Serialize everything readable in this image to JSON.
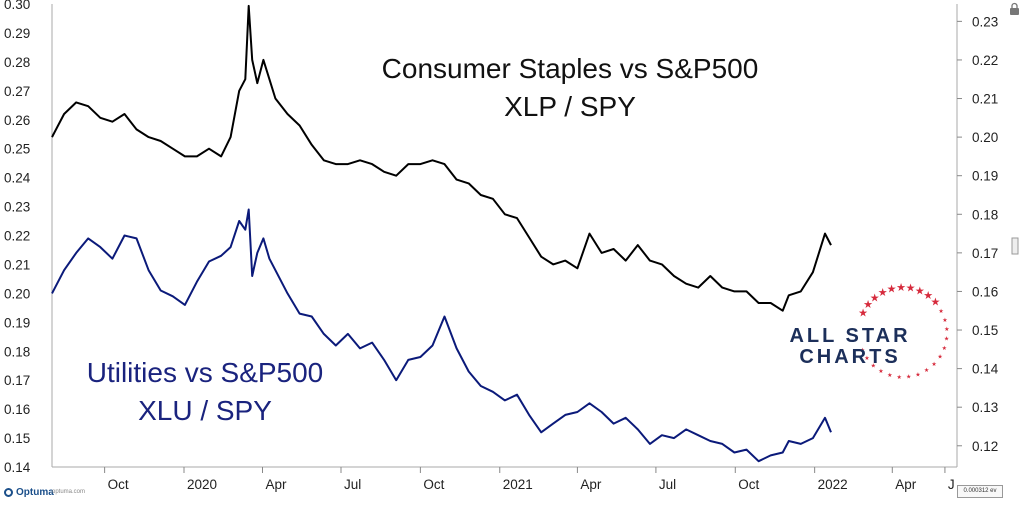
{
  "chart_data": {
    "type": "line",
    "titles": {
      "top_line1": "Consumer Staples vs S&P500",
      "top_line2": "XLP / SPY",
      "bottom_line1": "Utilities vs S&P500",
      "bottom_line2": "XLU / SPY"
    },
    "left_axis": {
      "ylim": [
        0.14,
        0.3
      ],
      "ticks": [
        "0.30",
        "0.29",
        "0.28",
        "0.27",
        "0.26",
        "0.25",
        "0.24",
        "0.23",
        "0.22",
        "0.21",
        "0.20",
        "0.19",
        "0.18",
        "0.17",
        "0.16",
        "0.15",
        "0.14"
      ]
    },
    "right_axis": {
      "ylim": [
        0.1145,
        0.2345
      ],
      "ticks": [
        "0.23",
        "0.22",
        "0.21",
        "0.20",
        "0.19",
        "0.18",
        "0.17",
        "0.16",
        "0.15",
        "0.14",
        "0.13",
        "0.12"
      ]
    },
    "x_axis": {
      "range": [
        "2019-08-01",
        "2022-06-15"
      ],
      "ticks": [
        {
          "label": "Oct",
          "date": "2019-10-01"
        },
        {
          "label": "2020",
          "date": "2020-01-01"
        },
        {
          "label": "Apr",
          "date": "2020-04-01"
        },
        {
          "label": "Jul",
          "date": "2020-07-01"
        },
        {
          "label": "Oct",
          "date": "2020-10-01"
        },
        {
          "label": "2021",
          "date": "2021-01-01"
        },
        {
          "label": "Apr",
          "date": "2021-04-01"
        },
        {
          "label": "Jul",
          "date": "2021-07-01"
        },
        {
          "label": "Oct",
          "date": "2021-10-01"
        },
        {
          "label": "2022",
          "date": "2022-01-01"
        },
        {
          "label": "Apr",
          "date": "2022-04-01"
        },
        {
          "label": "J",
          "date": "2022-06-01"
        }
      ]
    },
    "series": [
      {
        "axis": "right",
        "color": "#000000",
        "points": [
          [
            "2019-08-01",
            0.2
          ],
          [
            "2019-08-15",
            0.206
          ],
          [
            "2019-08-29",
            0.209
          ],
          [
            "2019-09-12",
            0.208
          ],
          [
            "2019-09-26",
            0.205
          ],
          [
            "2019-10-10",
            0.204
          ],
          [
            "2019-10-24",
            0.206
          ],
          [
            "2019-11-07",
            0.202
          ],
          [
            "2019-11-21",
            0.2
          ],
          [
            "2019-12-05",
            0.199
          ],
          [
            "2019-12-19",
            0.197
          ],
          [
            "2020-01-02",
            0.195
          ],
          [
            "2020-01-16",
            0.195
          ],
          [
            "2020-01-30",
            0.197
          ],
          [
            "2020-02-13",
            0.195
          ],
          [
            "2020-02-24",
            0.2
          ],
          [
            "2020-03-05",
            0.212
          ],
          [
            "2020-03-12",
            0.215
          ],
          [
            "2020-03-16",
            0.234
          ],
          [
            "2020-03-20",
            0.22
          ],
          [
            "2020-03-26",
            0.214
          ],
          [
            "2020-04-02",
            0.22
          ],
          [
            "2020-04-09",
            0.215
          ],
          [
            "2020-04-16",
            0.21
          ],
          [
            "2020-04-30",
            0.206
          ],
          [
            "2020-05-14",
            0.203
          ],
          [
            "2020-05-28",
            0.198
          ],
          [
            "2020-06-11",
            0.194
          ],
          [
            "2020-06-25",
            0.193
          ],
          [
            "2020-07-09",
            0.193
          ],
          [
            "2020-07-23",
            0.194
          ],
          [
            "2020-08-06",
            0.193
          ],
          [
            "2020-08-20",
            0.191
          ],
          [
            "2020-09-03",
            0.19
          ],
          [
            "2020-09-17",
            0.193
          ],
          [
            "2020-10-01",
            0.193
          ],
          [
            "2020-10-15",
            0.194
          ],
          [
            "2020-10-29",
            0.193
          ],
          [
            "2020-11-12",
            0.189
          ],
          [
            "2020-11-26",
            0.188
          ],
          [
            "2020-12-10",
            0.185
          ],
          [
            "2020-12-24",
            0.184
          ],
          [
            "2021-01-07",
            0.18
          ],
          [
            "2021-01-21",
            0.179
          ],
          [
            "2021-02-04",
            0.174
          ],
          [
            "2021-02-18",
            0.169
          ],
          [
            "2021-03-04",
            0.167
          ],
          [
            "2021-03-18",
            0.168
          ],
          [
            "2021-04-01",
            0.166
          ],
          [
            "2021-04-15",
            0.175
          ],
          [
            "2021-04-29",
            0.17
          ],
          [
            "2021-05-13",
            0.171
          ],
          [
            "2021-05-27",
            0.168
          ],
          [
            "2021-06-10",
            0.172
          ],
          [
            "2021-06-24",
            0.168
          ],
          [
            "2021-07-08",
            0.167
          ],
          [
            "2021-07-22",
            0.164
          ],
          [
            "2021-08-05",
            0.162
          ],
          [
            "2021-08-19",
            0.161
          ],
          [
            "2021-09-02",
            0.164
          ],
          [
            "2021-09-16",
            0.161
          ],
          [
            "2021-09-30",
            0.16
          ],
          [
            "2021-10-14",
            0.16
          ],
          [
            "2021-10-28",
            0.157
          ],
          [
            "2021-11-11",
            0.157
          ],
          [
            "2021-11-25",
            0.155
          ],
          [
            "2021-12-02",
            0.159
          ],
          [
            "2021-12-16",
            0.16
          ],
          [
            "2021-12-30",
            0.165
          ],
          [
            "2022-01-13",
            0.175
          ],
          [
            "2022-01-20",
            0.172
          ]
        ]
      },
      {
        "axis": "left",
        "color": "#0b1a7a",
        "points": [
          [
            "2019-08-01",
            0.2
          ],
          [
            "2019-08-15",
            0.208
          ],
          [
            "2019-08-29",
            0.214
          ],
          [
            "2019-09-12",
            0.219
          ],
          [
            "2019-09-26",
            0.216
          ],
          [
            "2019-10-10",
            0.212
          ],
          [
            "2019-10-24",
            0.22
          ],
          [
            "2019-11-07",
            0.219
          ],
          [
            "2019-11-21",
            0.208
          ],
          [
            "2019-12-05",
            0.201
          ],
          [
            "2019-12-19",
            0.199
          ],
          [
            "2020-01-02",
            0.196
          ],
          [
            "2020-01-16",
            0.204
          ],
          [
            "2020-01-30",
            0.211
          ],
          [
            "2020-02-13",
            0.213
          ],
          [
            "2020-02-24",
            0.216
          ],
          [
            "2020-03-05",
            0.225
          ],
          [
            "2020-03-12",
            0.222
          ],
          [
            "2020-03-16",
            0.229
          ],
          [
            "2020-03-20",
            0.206
          ],
          [
            "2020-03-26",
            0.214
          ],
          [
            "2020-04-02",
            0.219
          ],
          [
            "2020-04-09",
            0.212
          ],
          [
            "2020-04-16",
            0.208
          ],
          [
            "2020-04-30",
            0.2
          ],
          [
            "2020-05-14",
            0.193
          ],
          [
            "2020-05-28",
            0.192
          ],
          [
            "2020-06-11",
            0.186
          ],
          [
            "2020-06-25",
            0.182
          ],
          [
            "2020-07-09",
            0.186
          ],
          [
            "2020-07-23",
            0.181
          ],
          [
            "2020-08-06",
            0.183
          ],
          [
            "2020-08-20",
            0.177
          ],
          [
            "2020-09-03",
            0.17
          ],
          [
            "2020-09-17",
            0.177
          ],
          [
            "2020-10-01",
            0.178
          ],
          [
            "2020-10-15",
            0.182
          ],
          [
            "2020-10-29",
            0.192
          ],
          [
            "2020-11-12",
            0.181
          ],
          [
            "2020-11-26",
            0.173
          ],
          [
            "2020-12-10",
            0.168
          ],
          [
            "2020-12-24",
            0.166
          ],
          [
            "2021-01-07",
            0.163
          ],
          [
            "2021-01-21",
            0.165
          ],
          [
            "2021-02-04",
            0.158
          ],
          [
            "2021-02-18",
            0.152
          ],
          [
            "2021-03-04",
            0.155
          ],
          [
            "2021-03-18",
            0.158
          ],
          [
            "2021-04-01",
            0.159
          ],
          [
            "2021-04-15",
            0.162
          ],
          [
            "2021-04-29",
            0.159
          ],
          [
            "2021-05-13",
            0.155
          ],
          [
            "2021-05-27",
            0.157
          ],
          [
            "2021-06-10",
            0.153
          ],
          [
            "2021-06-24",
            0.148
          ],
          [
            "2021-07-08",
            0.151
          ],
          [
            "2021-07-22",
            0.15
          ],
          [
            "2021-08-05",
            0.153
          ],
          [
            "2021-08-19",
            0.151
          ],
          [
            "2021-09-02",
            0.149
          ],
          [
            "2021-09-16",
            0.148
          ],
          [
            "2021-09-30",
            0.145
          ],
          [
            "2021-10-14",
            0.146
          ],
          [
            "2021-10-28",
            0.142
          ],
          [
            "2021-11-11",
            0.144
          ],
          [
            "2021-11-25",
            0.145
          ],
          [
            "2021-12-02",
            0.149
          ],
          [
            "2021-12-16",
            0.148
          ],
          [
            "2021-12-30",
            0.15
          ],
          [
            "2022-01-13",
            0.157
          ],
          [
            "2022-01-20",
            0.152
          ]
        ]
      }
    ],
    "grid": false
  },
  "logo": {
    "line1": "ALL STAR",
    "line2": "CHARTS",
    "text_color": "#1c2f5a",
    "star_color": "#d62a3c"
  },
  "footer": {
    "brand": "Optuma",
    "url": "optuma.com",
    "scale": "0.000312",
    "scale_suffix": "ev"
  }
}
